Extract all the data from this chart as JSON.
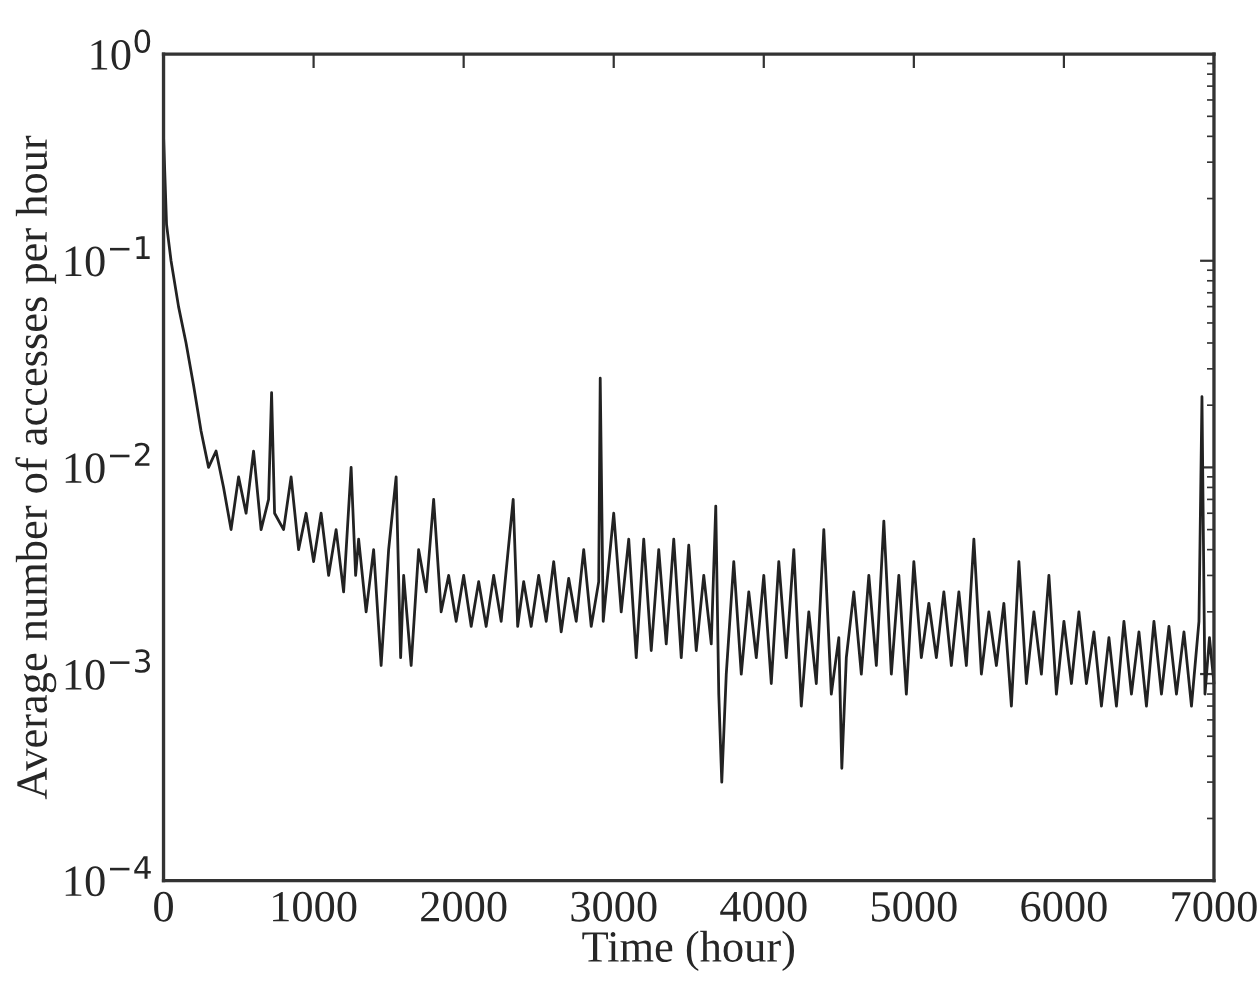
{
  "chart_data": {
    "type": "line",
    "xlabel": "Time (hour)",
    "ylabel": "Average number of accesses per hour",
    "log": "y",
    "grid": false,
    "marker": "none",
    "line_style": "solid",
    "xlim": [
      0,
      7000
    ],
    "xticks": [
      0,
      1000,
      2000,
      3000,
      4000,
      5000,
      6000,
      7000
    ],
    "ylim": [
      0.0001,
      1
    ],
    "yticks": [
      {
        "value": 0.0001,
        "label": "10$^{−4}$"
      },
      {
        "value": 0.001,
        "label": "10$^{−3}$"
      },
      {
        "value": 0.01,
        "label": "10$^{−2}$"
      },
      {
        "value": 0.1,
        "label": "10$^{−1}$"
      },
      {
        "value": 1,
        "label": "10$^{0}$"
      }
    ],
    "series": [
      {
        "color": "#222222",
        "x": [
          0,
          20,
          50,
          100,
          150,
          200,
          250,
          300,
          350,
          400,
          450,
          500,
          550,
          600,
          650,
          700,
          720,
          740,
          800,
          850,
          900,
          950,
          1000,
          1050,
          1100,
          1150,
          1200,
          1250,
          1280,
          1300,
          1350,
          1400,
          1450,
          1500,
          1550,
          1580,
          1600,
          1650,
          1700,
          1750,
          1800,
          1850,
          1900,
          1950,
          2000,
          2050,
          2100,
          2150,
          2200,
          2250,
          2330,
          2360,
          2400,
          2450,
          2500,
          2550,
          2600,
          2650,
          2700,
          2750,
          2800,
          2850,
          2900,
          2910,
          2930,
          3000,
          3050,
          3100,
          3150,
          3200,
          3250,
          3300,
          3350,
          3400,
          3450,
          3500,
          3550,
          3600,
          3650,
          3680,
          3700,
          3720,
          3750,
          3800,
          3850,
          3900,
          3950,
          4000,
          4050,
          4100,
          4150,
          4200,
          4250,
          4300,
          4350,
          4400,
          4450,
          4500,
          4520,
          4550,
          4600,
          4650,
          4700,
          4750,
          4800,
          4850,
          4900,
          4950,
          5000,
          5050,
          5100,
          5150,
          5200,
          5250,
          5300,
          5350,
          5400,
          5450,
          5500,
          5550,
          5600,
          5650,
          5700,
          5750,
          5800,
          5850,
          5900,
          5950,
          6000,
          6050,
          6100,
          6150,
          6200,
          6250,
          6300,
          6350,
          6400,
          6450,
          6500,
          6550,
          6600,
          6650,
          6700,
          6750,
          6800,
          6850,
          6900,
          6920,
          6940,
          6970,
          7000
        ],
        "values": [
          0.4,
          0.15,
          0.1,
          0.06,
          0.04,
          0.025,
          0.015,
          0.01,
          0.012,
          0.008,
          0.005,
          0.009,
          0.006,
          0.012,
          0.005,
          0.007,
          0.023,
          0.006,
          0.005,
          0.009,
          0.004,
          0.006,
          0.0035,
          0.006,
          0.003,
          0.005,
          0.0025,
          0.01,
          0.003,
          0.0045,
          0.002,
          0.004,
          0.0011,
          0.004,
          0.009,
          0.0012,
          0.003,
          0.0011,
          0.004,
          0.0025,
          0.007,
          0.002,
          0.003,
          0.0018,
          0.003,
          0.0017,
          0.0028,
          0.0017,
          0.003,
          0.0018,
          0.007,
          0.0017,
          0.0028,
          0.0017,
          0.003,
          0.0018,
          0.0035,
          0.0016,
          0.0029,
          0.0018,
          0.004,
          0.0017,
          0.0028,
          0.027,
          0.0018,
          0.006,
          0.002,
          0.0045,
          0.0012,
          0.0045,
          0.0013,
          0.004,
          0.0014,
          0.0045,
          0.0012,
          0.0042,
          0.0013,
          0.003,
          0.0014,
          0.0065,
          0.0008,
          0.0003,
          0.001,
          0.0035,
          0.001,
          0.0025,
          0.0012,
          0.003,
          0.0009,
          0.0035,
          0.0012,
          0.004,
          0.0007,
          0.002,
          0.0009,
          0.005,
          0.0008,
          0.0015,
          0.00035,
          0.0012,
          0.0025,
          0.001,
          0.003,
          0.0011,
          0.0055,
          0.001,
          0.003,
          0.0008,
          0.0035,
          0.0012,
          0.0022,
          0.0012,
          0.0025,
          0.0011,
          0.0025,
          0.0011,
          0.0045,
          0.001,
          0.002,
          0.0011,
          0.0022,
          0.0007,
          0.0035,
          0.0009,
          0.002,
          0.001,
          0.003,
          0.0008,
          0.0018,
          0.0009,
          0.002,
          0.0009,
          0.0016,
          0.0007,
          0.0015,
          0.0007,
          0.0018,
          0.0008,
          0.0016,
          0.0007,
          0.0018,
          0.0008,
          0.0017,
          0.0008,
          0.0016,
          0.0007,
          0.0018,
          0.022,
          0.0008,
          0.0015,
          0.0009
        ]
      }
    ]
  }
}
